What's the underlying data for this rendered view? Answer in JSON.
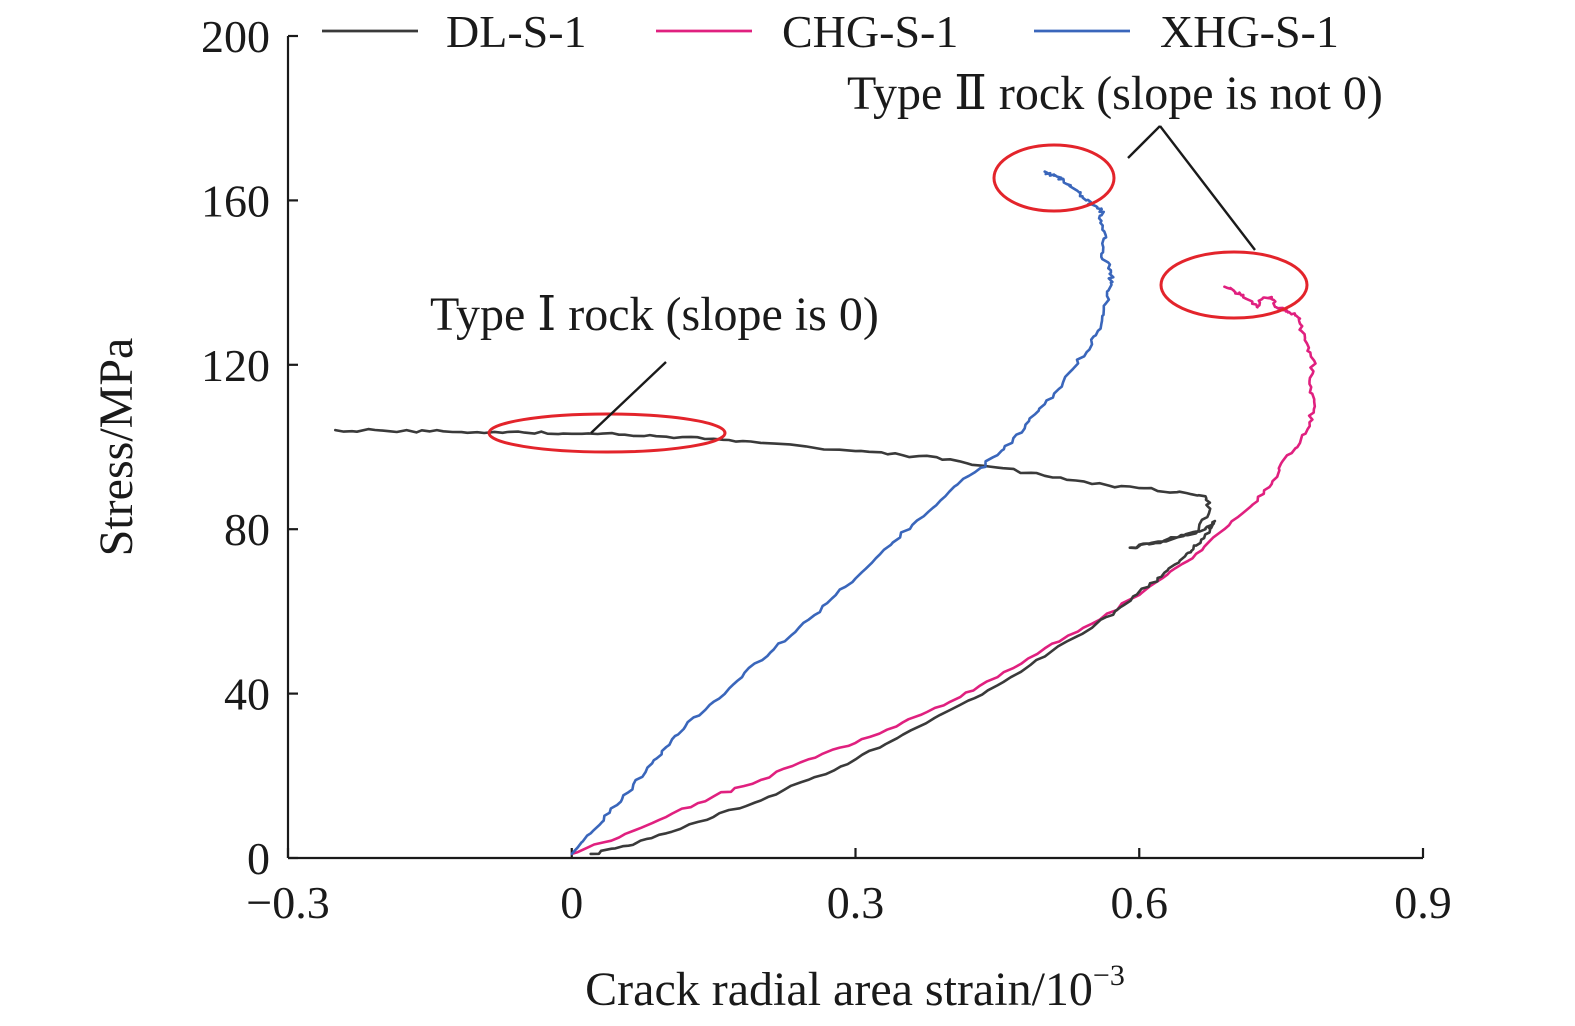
{
  "chart_data": {
    "type": "line",
    "xlabel": "Crack radial area strain/10",
    "xlabel_sup": "−3",
    "ylabel": "Stress/MPa",
    "xlim": [
      -0.3,
      0.9
    ],
    "ylim": [
      0,
      200
    ],
    "x_ticks": [
      -0.3,
      0,
      0.3,
      0.6,
      0.9
    ],
    "x_tick_labels": [
      "−0.3",
      "0",
      "0.3",
      "0.6",
      "0.9"
    ],
    "y_ticks": [
      0,
      40,
      80,
      120,
      160,
      200
    ],
    "y_tick_labels": [
      "0",
      "40",
      "80",
      "120",
      "160",
      "200"
    ],
    "legend_position": "top",
    "series": [
      {
        "name": "DL-S-1",
        "color": "#3a3a3a",
        "points": [
          [
            0.02,
            1
          ],
          [
            0.06,
            3
          ],
          [
            0.1,
            6
          ],
          [
            0.15,
            10
          ],
          [
            0.2,
            14
          ],
          [
            0.25,
            19
          ],
          [
            0.3,
            24
          ],
          [
            0.35,
            30
          ],
          [
            0.4,
            36
          ],
          [
            0.45,
            42
          ],
          [
            0.5,
            49
          ],
          [
            0.55,
            56
          ],
          [
            0.58,
            61
          ],
          [
            0.61,
            66
          ],
          [
            0.63,
            70
          ],
          [
            0.65,
            74
          ],
          [
            0.66,
            76
          ],
          [
            0.675,
            80
          ],
          [
            0.68,
            82
          ],
          [
            0.67,
            80
          ],
          [
            0.64,
            78
          ],
          [
            0.615,
            76.5
          ],
          [
            0.59,
            75.5
          ],
          [
            0.62,
            77
          ],
          [
            0.66,
            79
          ],
          [
            0.675,
            85
          ],
          [
            0.67,
            88
          ],
          [
            0.64,
            89
          ],
          [
            0.6,
            90
          ],
          [
            0.55,
            91
          ],
          [
            0.5,
            93
          ],
          [
            0.45,
            95
          ],
          [
            0.4,
            97
          ],
          [
            0.35,
            98
          ],
          [
            0.3,
            99
          ],
          [
            0.2,
            101
          ],
          [
            0.15,
            102
          ],
          [
            0.1,
            102.5
          ],
          [
            0.05,
            103
          ],
          [
            0.0,
            103.2
          ],
          [
            -0.05,
            103.5
          ],
          [
            -0.1,
            103.6
          ],
          [
            -0.15,
            103.8
          ],
          [
            -0.2,
            104
          ],
          [
            -0.25,
            104.1
          ]
        ]
      },
      {
        "name": "CHG-S-1",
        "color": "#e0207f",
        "points": [
          [
            0.0,
            1
          ],
          [
            0.05,
            5
          ],
          [
            0.1,
            10
          ],
          [
            0.15,
            15
          ],
          [
            0.2,
            19
          ],
          [
            0.25,
            24
          ],
          [
            0.3,
            28
          ],
          [
            0.35,
            33
          ],
          [
            0.4,
            38
          ],
          [
            0.45,
            44
          ],
          [
            0.5,
            51
          ],
          [
            0.55,
            57
          ],
          [
            0.6,
            64
          ],
          [
            0.63,
            69
          ],
          [
            0.66,
            74
          ],
          [
            0.69,
            80
          ],
          [
            0.72,
            86
          ],
          [
            0.74,
            91
          ],
          [
            0.75,
            96
          ],
          [
            0.77,
            101
          ],
          [
            0.78,
            106
          ],
          [
            0.785,
            111
          ],
          [
            0.78,
            116
          ],
          [
            0.785,
            121
          ],
          [
            0.775,
            126
          ],
          [
            0.77,
            130
          ],
          [
            0.765,
            132
          ],
          [
            0.755,
            133
          ],
          [
            0.745,
            134
          ],
          [
            0.74,
            136.5
          ],
          [
            0.73,
            136
          ],
          [
            0.725,
            134
          ],
          [
            0.71,
            137
          ],
          [
            0.7,
            138
          ],
          [
            0.69,
            139
          ]
        ]
      },
      {
        "name": "XHG-S-1",
        "color": "#3a66bb",
        "points": [
          [
            0.0,
            1
          ],
          [
            0.02,
            6
          ],
          [
            0.04,
            11
          ],
          [
            0.06,
            16
          ],
          [
            0.08,
            22
          ],
          [
            0.1,
            27
          ],
          [
            0.12,
            32
          ],
          [
            0.15,
            38
          ],
          [
            0.18,
            44
          ],
          [
            0.21,
            50
          ],
          [
            0.24,
            56
          ],
          [
            0.27,
            62
          ],
          [
            0.3,
            68
          ],
          [
            0.33,
            75
          ],
          [
            0.36,
            81
          ],
          [
            0.39,
            87
          ],
          [
            0.42,
            93
          ],
          [
            0.45,
            98
          ],
          [
            0.47,
            103
          ],
          [
            0.49,
            108
          ],
          [
            0.51,
            113
          ],
          [
            0.53,
            119
          ],
          [
            0.55,
            125
          ],
          [
            0.56,
            130
          ],
          [
            0.565,
            135
          ],
          [
            0.57,
            140
          ],
          [
            0.57,
            143
          ],
          [
            0.56,
            147
          ],
          [
            0.565,
            151
          ],
          [
            0.56,
            155
          ],
          [
            0.56,
            158
          ],
          [
            0.55,
            159
          ],
          [
            0.54,
            161
          ],
          [
            0.53,
            163
          ],
          [
            0.52,
            165
          ],
          [
            0.51,
            166
          ],
          [
            0.5,
            167
          ]
        ]
      }
    ],
    "annotations": [
      {
        "text": "Type Ⅰ rock (slope is 0)"
      },
      {
        "text": "Type Ⅱ rock (slope is not 0)"
      }
    ]
  }
}
